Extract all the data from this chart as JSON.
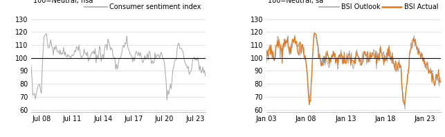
{
  "left_title": "100=Neutral, nsa",
  "right_title": "100=Neutral, sa",
  "left_legend": "Consumer sentiment index",
  "right_legend1": "BSI Outlook",
  "right_legend2": "BSI Actual",
  "left_color": "#aaaaaa",
  "right_color1": "#aaaaaa",
  "right_color2": "#e07820",
  "neutral_color": "#000000",
  "ylim_left": [
    58,
    132
  ],
  "ylim_right": [
    58,
    132
  ],
  "left_yticks": [
    60,
    70,
    80,
    90,
    100,
    110,
    120,
    130
  ],
  "right_yticks": [
    60,
    70,
    80,
    90,
    100,
    110,
    120,
    130
  ],
  "left_xtick_labels": [
    "Jul 08",
    "Jul 11",
    "Jul 14",
    "Jul 17",
    "Jul 20",
    "Jul 23"
  ],
  "right_xtick_labels": [
    "Jan 03",
    "Jan 08",
    "Jan 13",
    "Jan 18",
    "Jan 23"
  ],
  "bg_color": "#ffffff",
  "grid_color": "#dddddd",
  "title_fontsize": 7.0,
  "legend_fontsize": 7.0,
  "tick_fontsize": 7.0
}
